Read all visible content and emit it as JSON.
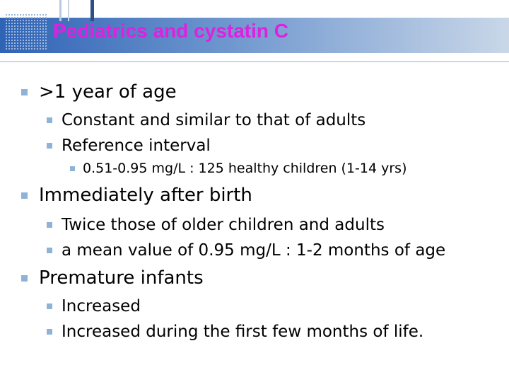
{
  "title": "Pediatrics and cystatin C",
  "items": [
    {
      "text": ">1 year of age",
      "children": [
        {
          "text": "Constant and similar to that of adults"
        },
        {
          "text": "Reference interval",
          "children": [
            {
              "text": "0.51-0.95 mg/L : 125 healthy children (1-14 yrs)"
            }
          ]
        }
      ]
    },
    {
      "text": "Immediately after birth",
      "children": [
        {
          "text": "Twice those of older children and adults"
        },
        {
          "text": "a mean value of 0.95 mg/L : 1-2 months of age"
        }
      ]
    },
    {
      "text": "Premature infants",
      "children": [
        {
          "text": "Increased"
        },
        {
          "text": "Increased during the first few months of life."
        }
      ]
    }
  ]
}
